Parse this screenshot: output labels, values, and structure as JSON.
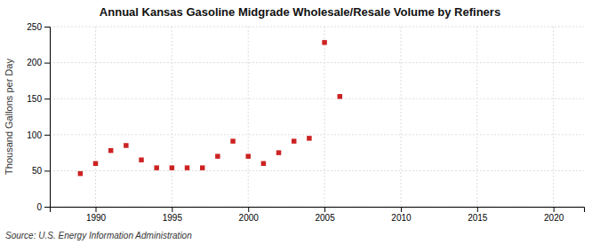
{
  "chart_data": {
    "type": "scatter",
    "title": "Annual Kansas Gasoline Midgrade Wholesale/Resale Volume by Refiners",
    "ylabel": "Thousand Gallons per Day",
    "source": "Source: U.S. Energy Information Administration",
    "x": [
      1989,
      1990,
      1991,
      1992,
      1993,
      1994,
      1995,
      1996,
      1997,
      1998,
      1999,
      2000,
      2001,
      2002,
      2003,
      2004,
      2005,
      2006
    ],
    "values": [
      46,
      60,
      78,
      85,
      65,
      54,
      54,
      54,
      54,
      70,
      91,
      70,
      60,
      75,
      91,
      95,
      228,
      153
    ],
    "color": "#cc2222",
    "marker": "square",
    "xlim": [
      1987,
      2022
    ],
    "ylim": [
      0,
      250
    ],
    "xticks": [
      1990,
      1995,
      2000,
      2005,
      2010,
      2015,
      2020
    ],
    "yticks": [
      0,
      50,
      100,
      150,
      200,
      250
    ],
    "grid": true
  }
}
